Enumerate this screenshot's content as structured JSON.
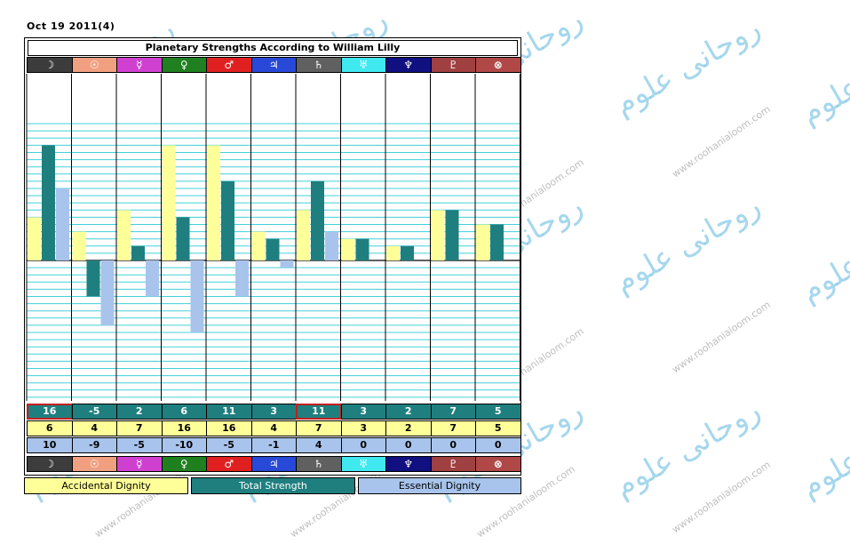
{
  "date_label": "Oct 19 2011(4)",
  "chart_data": {
    "type": "bar",
    "title": "Planetary Strengths According to William Lilly",
    "categories": [
      "☽",
      "☉",
      "☿",
      "♀",
      "♂",
      "♃",
      "♄",
      "♅",
      "♆",
      "♇",
      "⊗"
    ],
    "category_colors": [
      "#3c3c3c",
      "#f0a080",
      "#d040d0",
      "#208020",
      "#e02020",
      "#2848d8",
      "#606060",
      "#40e8f0",
      "#101080",
      "#a04040",
      "#b04848"
    ],
    "series": [
      {
        "name": "Accidental Dignity",
        "color": "#ffff99",
        "values": [
          6,
          4,
          7,
          16,
          16,
          4,
          7,
          3,
          2,
          7,
          5
        ]
      },
      {
        "name": "Total Strength",
        "color": "#1f7f7f",
        "values": [
          16,
          -5,
          2,
          6,
          11,
          3,
          11,
          3,
          2,
          7,
          5
        ]
      },
      {
        "name": "Essential Dignity",
        "color": "#a8c4ec",
        "values": [
          10,
          -9,
          -5,
          -10,
          -5,
          -1,
          4,
          0,
          0,
          0,
          0
        ]
      }
    ],
    "ylim": [
      -20,
      20
    ],
    "grid": true,
    "highlighted_total_cells": [
      0,
      6
    ]
  },
  "watermark": {
    "site": "www.roohanialoom.com",
    "logo": "روحانی علوم"
  }
}
